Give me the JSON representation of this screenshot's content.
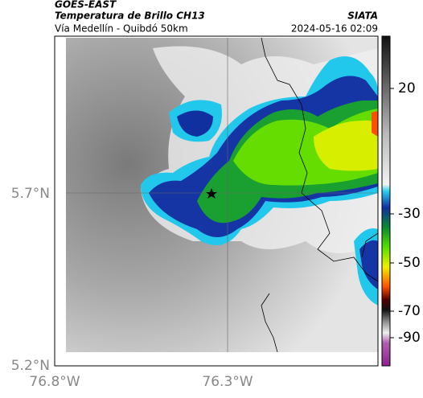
{
  "header": {
    "source": "GOES-EAST",
    "title": "Temperatura de Brillo CH13",
    "subtitle": "Vía Medellín - Quibdó 50km",
    "agency": "SIATA",
    "timestamp": "2024-05-16 02:09"
  },
  "map": {
    "lat_labels": [
      "5.7°N",
      "5.2°N"
    ],
    "lon_labels": [
      "76.8°W",
      "76.3°W"
    ]
  },
  "colorbar": {
    "tick_labels": [
      "20",
      "-30",
      "-50",
      "-70",
      "-90"
    ]
  }
}
